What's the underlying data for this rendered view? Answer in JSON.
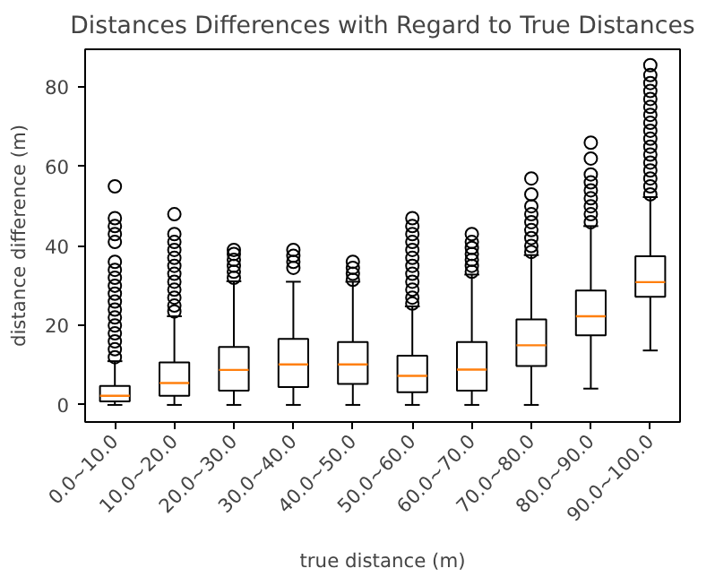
{
  "chart_data": {
    "type": "box",
    "title": "Distances Differences with Regard to True Distances",
    "xlabel": "true distance (m)",
    "ylabel": "distance difference (m)",
    "categories": [
      "0.0~10.0",
      "10.0~20.0",
      "20.0~30.0",
      "30.0~40.0",
      "40.0~50.0",
      "50.0~60.0",
      "60.0~70.0",
      "70.0~80.0",
      "80.0~90.0",
      "90.0~100.0"
    ],
    "ylim": [
      -4.3,
      89.5
    ],
    "yticks": [
      0,
      20,
      40,
      60,
      80
    ],
    "grid": false,
    "series": [
      {
        "color": "#000000",
        "boxes": [
          {
            "low": 0,
            "q1": 0.9,
            "median": 2.3,
            "q3": 4.8,
            "high": 11,
            "outliers": [
              12,
              14,
              16,
              18,
              20,
              22,
              24,
              26,
              28,
              30,
              32,
              34,
              36,
              41,
              43,
              45,
              47,
              55
            ]
          },
          {
            "low": 0,
            "q1": 2.3,
            "median": 5.5,
            "q3": 10.7,
            "high": 22.3,
            "outliers": [
              23.5,
              25,
              27,
              29,
              31,
              33,
              35,
              37,
              39,
              41,
              43,
              48
            ]
          },
          {
            "low": 0,
            "q1": 3.6,
            "median": 8.8,
            "q3": 14.6,
            "high": 31.1,
            "outliers": [
              32,
              33.5,
              35,
              36.5,
              38,
              39
            ]
          },
          {
            "low": 0,
            "q1": 4.5,
            "median": 10.2,
            "q3": 16.6,
            "high": 31,
            "outliers": [
              34.5,
              36,
              37.5,
              39
            ]
          },
          {
            "low": 0,
            "q1": 5.3,
            "median": 10.2,
            "q3": 15.8,
            "high": 31,
            "outliers": [
              31.5,
              33,
              34.5,
              36
            ]
          },
          {
            "low": 0,
            "q1": 3.2,
            "median": 7.3,
            "q3": 12.4,
            "high": 24.8,
            "outliers": [
              25.5,
              27,
              29,
              31,
              33,
              35,
              37,
              39,
              41,
              43,
              45,
              47
            ]
          },
          {
            "low": 0,
            "q1": 3.6,
            "median": 8.9,
            "q3": 15.8,
            "high": 32.8,
            "outliers": [
              33.5,
              35,
              36.5,
              38,
              39.5,
              41,
              43
            ]
          },
          {
            "low": 0,
            "q1": 9.8,
            "median": 15.0,
            "q3": 21.5,
            "high": 37.7,
            "outliers": [
              38.5,
              40,
              42,
              44,
              46,
              48,
              50,
              53,
              57
            ]
          },
          {
            "low": 4.1,
            "q1": 17.5,
            "median": 22.3,
            "q3": 28.8,
            "high": 45.0,
            "outliers": [
              46,
              48,
              50,
              52,
              54,
              56,
              58,
              62,
              66
            ]
          },
          {
            "low": 13.7,
            "q1": 27.2,
            "median": 30.9,
            "q3": 37.4,
            "high": 52.3,
            "outliers": [
              53,
              55,
              57,
              59,
              61,
              63,
              65,
              67,
              69,
              71,
              73,
              75,
              77,
              79,
              81,
              83,
              85.5
            ]
          }
        ]
      }
    ]
  }
}
